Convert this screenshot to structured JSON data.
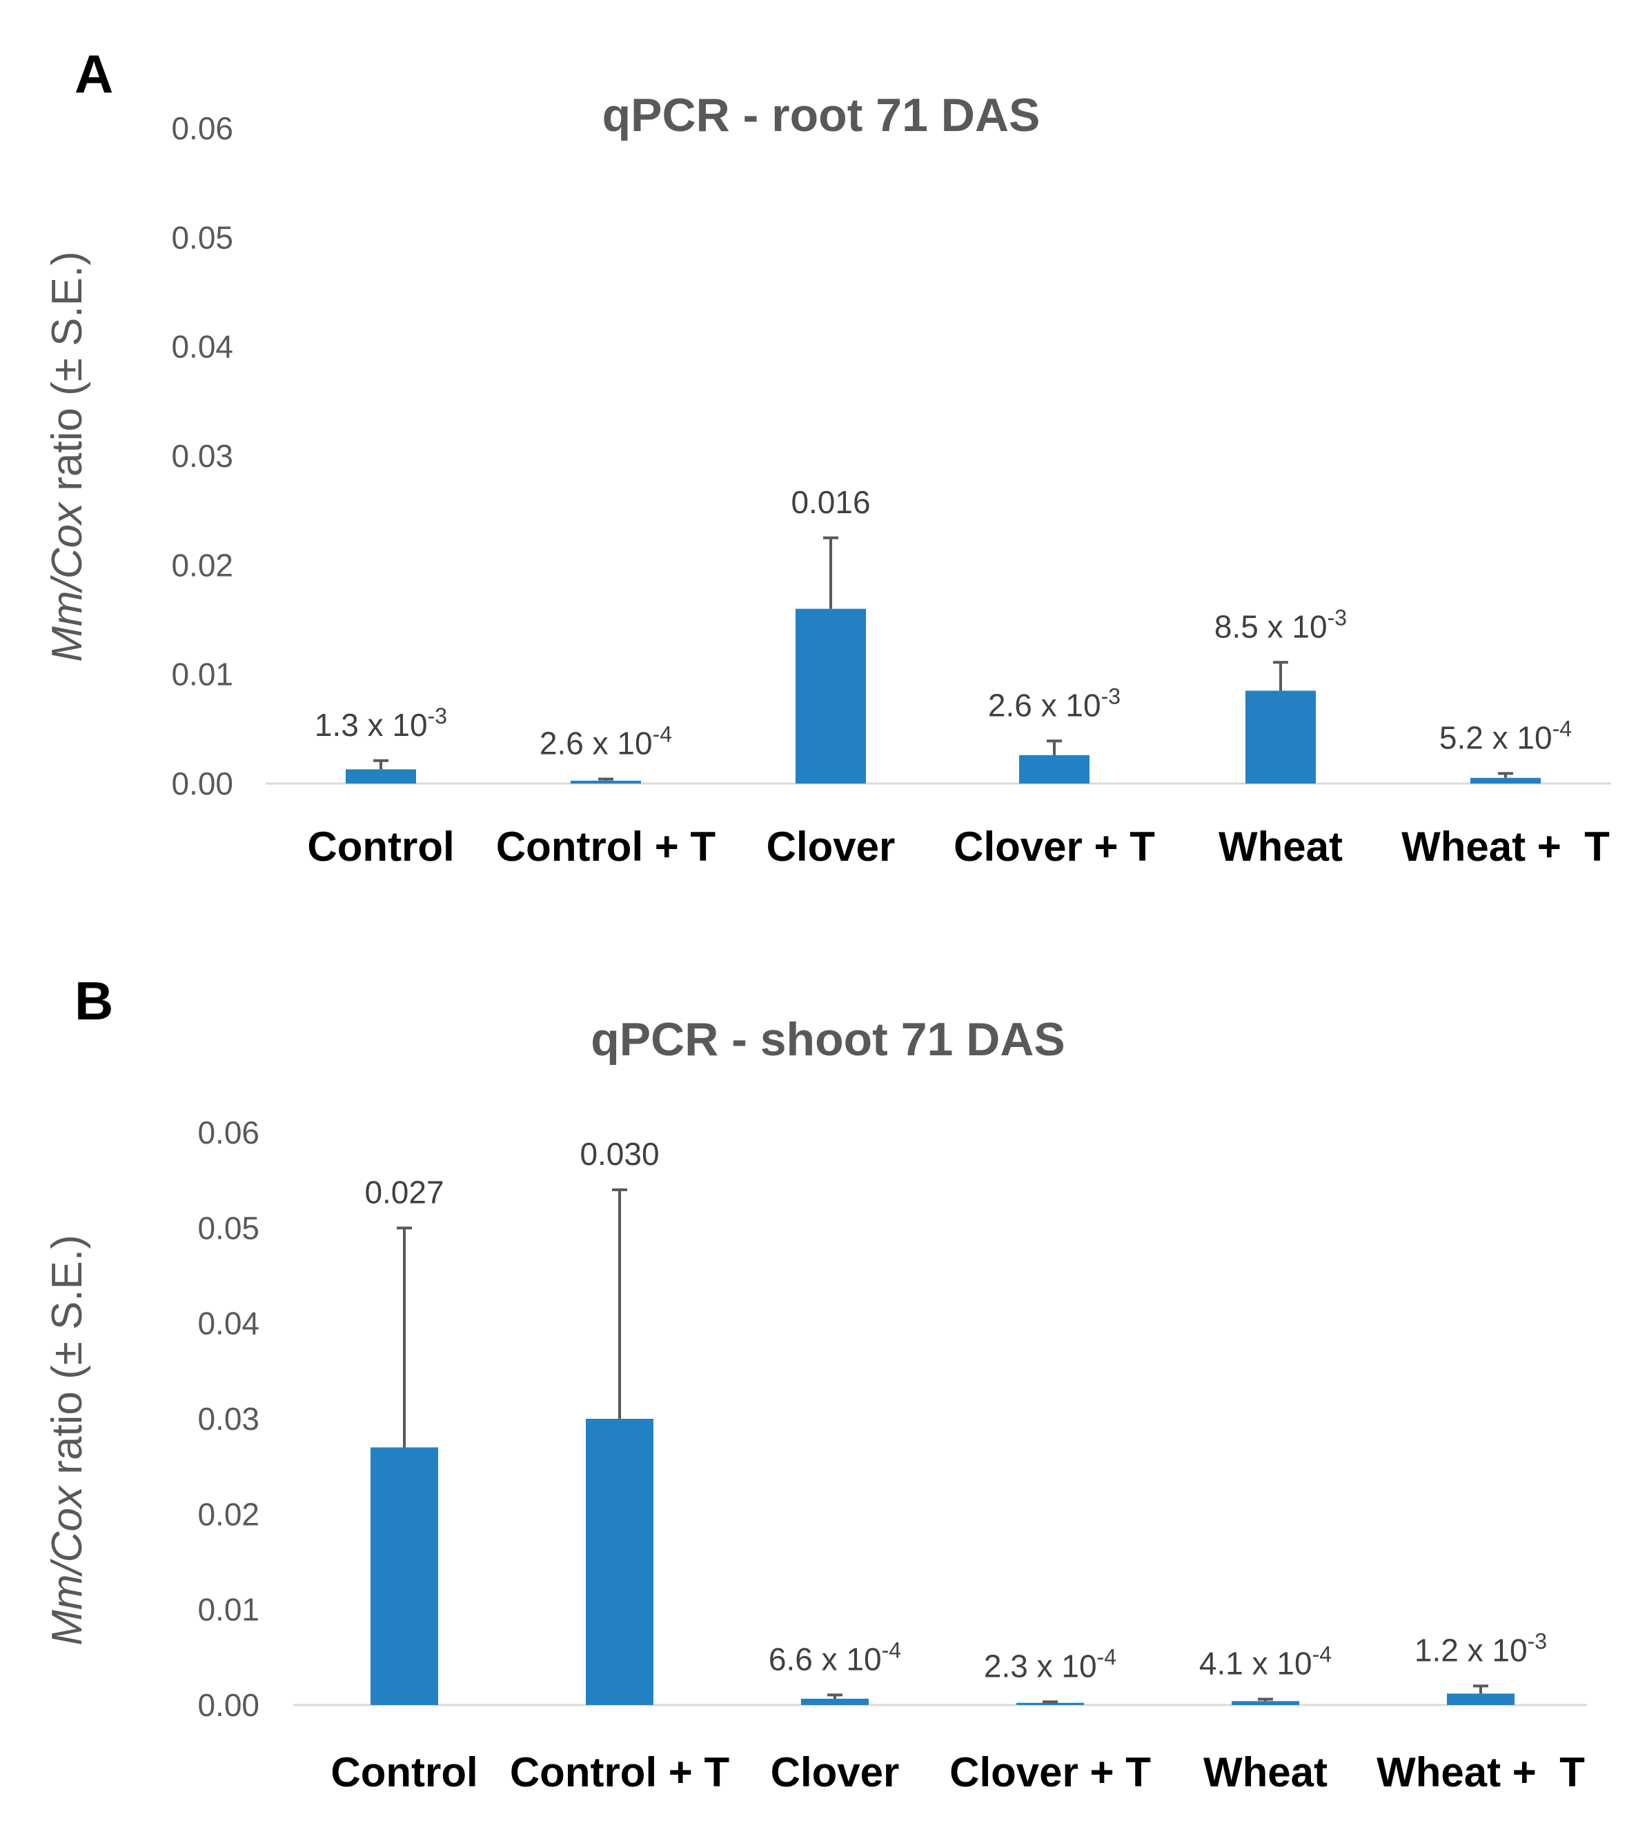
{
  "chart_data": [
    {
      "type": "bar",
      "panel_label": "A",
      "title": "qPCR - root 71 DAS",
      "ylabel_italic": "Mm/Cox",
      "ylabel_rest": " ratio (± S.E.)",
      "xlabel": "",
      "ylim": [
        0,
        0.06
      ],
      "yticks": [
        "0.00",
        "0.01",
        "0.02",
        "0.03",
        "0.04",
        "0.05",
        "0.06"
      ],
      "grid": false,
      "categories": [
        "Control",
        "Control + T",
        "Clover",
        "Clover + T",
        "Wheat",
        "Wheat +  T"
      ],
      "values": [
        0.0013,
        0.00026,
        0.016,
        0.0026,
        0.0085,
        0.00052
      ],
      "errors": [
        0.0008,
        0.00015,
        0.0065,
        0.0013,
        0.0026,
        0.0004
      ],
      "data_labels": [
        {
          "base": "1.3 x 10",
          "exp": "-3"
        },
        {
          "base": "2.6 x 10",
          "exp": "-4"
        },
        {
          "base": "0.016",
          "exp": ""
        },
        {
          "base": "2.6 x 10",
          "exp": "-3"
        },
        {
          "base": "8.5 x 10",
          "exp": "-3"
        },
        {
          "base": "5.2 x 10",
          "exp": "-4"
        }
      ],
      "colors": {
        "bar": "#2380c3",
        "error": "#595959"
      }
    },
    {
      "type": "bar",
      "panel_label": "B",
      "title": "qPCR - shoot 71 DAS",
      "ylabel_italic": "Mm/Cox",
      "ylabel_rest": " ratio (± S.E.)",
      "xlabel": "",
      "ylim": [
        0,
        0.06
      ],
      "yticks": [
        "0.00",
        "0.01",
        "0.02",
        "0.03",
        "0.04",
        "0.05",
        "0.06"
      ],
      "grid": false,
      "categories": [
        "Control",
        "Control + T",
        "Clover",
        "Clover + T",
        "Wheat",
        "Wheat +  T"
      ],
      "values": [
        0.027,
        0.03,
        0.00066,
        0.00023,
        0.00041,
        0.0012
      ],
      "errors": [
        0.023,
        0.024,
        0.0004,
        0.0001,
        0.0002,
        0.0008
      ],
      "data_labels": [
        {
          "base": "0.027",
          "exp": ""
        },
        {
          "base": "0.030",
          "exp": ""
        },
        {
          "base": "6.6 x 10",
          "exp": "-4"
        },
        {
          "base": "2.3 x 10",
          "exp": "-4"
        },
        {
          "base": "4.1 x 10",
          "exp": "-4"
        },
        {
          "base": "1.2 x 10",
          "exp": "-3"
        }
      ],
      "colors": {
        "bar": "#2380c3",
        "error": "#595959"
      }
    }
  ]
}
